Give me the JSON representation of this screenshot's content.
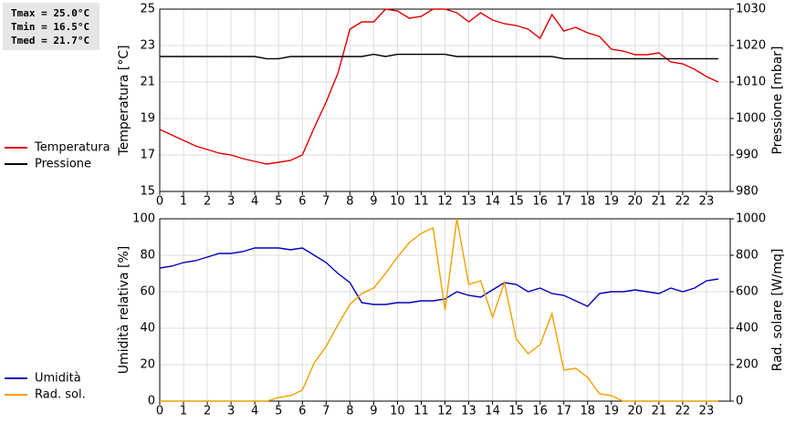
{
  "chart_data": [
    {
      "type": "line",
      "annotations": [
        "Tmax = 25.0°C",
        "Tmin = 16.5°C",
        "Tmed = 21.7°C"
      ],
      "ylabel": "Temperatura [°C]",
      "y2label": "Pressione [mbar]",
      "x": [
        0,
        0.5,
        1,
        1.5,
        2,
        2.5,
        3,
        3.5,
        4,
        4.5,
        5,
        5.5,
        6,
        6.5,
        7,
        7.5,
        8,
        8.5,
        9,
        9.5,
        10,
        10.5,
        11,
        11.5,
        12,
        12.5,
        13,
        13.5,
        14,
        14.5,
        15,
        15.5,
        16,
        16.5,
        17,
        17.5,
        18,
        18.5,
        19,
        19.5,
        20,
        20.5,
        21,
        21.5,
        22,
        22.5,
        23,
        23.5
      ],
      "xlim": [
        0,
        24
      ],
      "xticks": [
        0,
        1,
        2,
        3,
        4,
        5,
        6,
        7,
        8,
        9,
        10,
        11,
        12,
        13,
        14,
        15,
        16,
        17,
        18,
        19,
        20,
        21,
        22,
        23
      ],
      "ylim": [
        15,
        25
      ],
      "yticks": [
        15,
        17,
        19,
        21,
        23,
        25
      ],
      "y2lim": [
        980,
        1030
      ],
      "y2ticks": [
        980,
        990,
        1000,
        1010,
        1020,
        1030
      ],
      "grid": true,
      "legend": "left",
      "series": [
        {
          "name": "Temperatura",
          "color": "#dd0000",
          "values": [
            18.4,
            18.1,
            17.8,
            17.5,
            17.3,
            17.1,
            17.0,
            16.8,
            16.65,
            16.5,
            16.6,
            16.7,
            17.0,
            18.5,
            19.9,
            21.5,
            23.9,
            24.3,
            24.3,
            25.0,
            24.9,
            24.5,
            24.6,
            25.0,
            25.0,
            24.8,
            24.3,
            24.8,
            24.4,
            24.2,
            24.1,
            23.9,
            23.4,
            24.7,
            23.8,
            24.0,
            23.7,
            23.5,
            22.8,
            22.7,
            22.5,
            22.5,
            22.6,
            22.1,
            22.0,
            21.7,
            21.3,
            21.0
          ]
        },
        {
          "name": "Pressione",
          "color": "#000000",
          "axis": "y2",
          "values": [
            1017,
            1017,
            1017,
            1017,
            1017,
            1017,
            1017,
            1017,
            1017,
            1016.4,
            1016.4,
            1017,
            1017,
            1017,
            1017,
            1017,
            1017,
            1017,
            1017.6,
            1017,
            1017.6,
            1017.6,
            1017.6,
            1017.6,
            1017.6,
            1017,
            1017,
            1017,
            1017,
            1017,
            1017,
            1017,
            1017,
            1017,
            1016.4,
            1016.4,
            1016.4,
            1016.4,
            1016.4,
            1016.4,
            1016.4,
            1016.4,
            1016.4,
            1016.4,
            1016.4,
            1016.4,
            1016.4,
            1016.4
          ]
        }
      ]
    },
    {
      "type": "line",
      "ylabel": "Umidità relativa [%]",
      "y2label": "Rad. solare [W/mq]",
      "x": [
        0,
        0.5,
        1,
        1.5,
        2,
        2.5,
        3,
        3.5,
        4,
        4.5,
        5,
        5.5,
        6,
        6.5,
        7,
        7.5,
        8,
        8.5,
        9,
        9.5,
        10,
        10.5,
        11,
        11.5,
        12,
        12.5,
        13,
        13.5,
        14,
        14.5,
        15,
        15.5,
        16,
        16.5,
        17,
        17.5,
        18,
        18.5,
        19,
        19.5,
        20,
        20.5,
        21,
        21.5,
        22,
        22.5,
        23,
        23.5
      ],
      "xlim": [
        0,
        24
      ],
      "xticks": [
        0,
        1,
        2,
        3,
        4,
        5,
        6,
        7,
        8,
        9,
        10,
        11,
        12,
        13,
        14,
        15,
        16,
        17,
        18,
        19,
        20,
        21,
        22,
        23
      ],
      "ylim": [
        0,
        100
      ],
      "yticks": [
        0,
        20,
        40,
        60,
        80,
        100
      ],
      "y2lim": [
        0,
        1000
      ],
      "y2ticks": [
        0,
        200,
        400,
        600,
        800,
        1000
      ],
      "grid": true,
      "legend": "left",
      "series": [
        {
          "name": "Umidità",
          "color": "#0000bb",
          "values": [
            73,
            74,
            76,
            77,
            79,
            81,
            81,
            82,
            84,
            84,
            84,
            83,
            84,
            80,
            76,
            70,
            65,
            54,
            53,
            53,
            54,
            54,
            55,
            55,
            56,
            60,
            58,
            57,
            61,
            65,
            64,
            60,
            62,
            59,
            58,
            55,
            52,
            59,
            60,
            60,
            61,
            60,
            59,
            62,
            60,
            62,
            66,
            67
          ]
        },
        {
          "name": "Rad. sol.",
          "color": "#f0a000",
          "axis": "y2",
          "values": [
            0,
            0,
            0,
            0,
            0,
            0,
            0,
            0,
            0,
            0,
            20,
            30,
            60,
            210,
            300,
            420,
            530,
            590,
            620,
            700,
            790,
            870,
            920,
            950,
            500,
            1000,
            640,
            660,
            460,
            650,
            340,
            260,
            310,
            480,
            170,
            180,
            130,
            40,
            30,
            0,
            0,
            0,
            0,
            0,
            0,
            0,
            0,
            0
          ]
        }
      ]
    }
  ]
}
